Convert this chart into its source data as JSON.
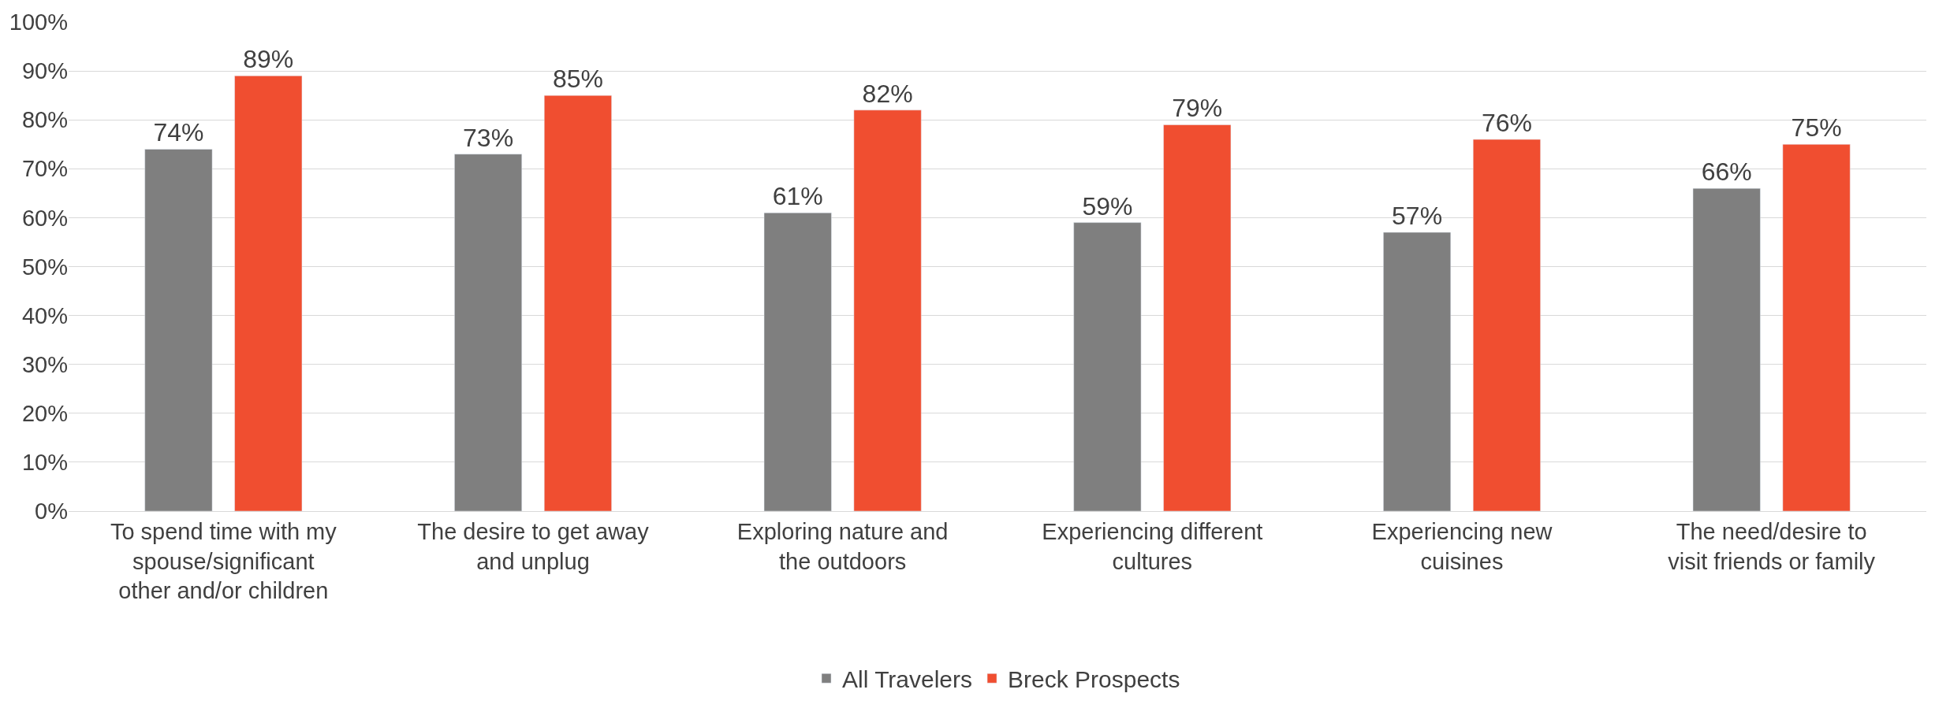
{
  "chart_data": {
    "type": "bar",
    "categories": [
      "To spend time with my spouse/significant other and/or children",
      "The desire to get away and unplug",
      "Exploring nature and the outdoors",
      "Experiencing different cultures",
      "Experiencing new cuisines",
      "The need/desire to visit friends or family"
    ],
    "series": [
      {
        "name": "All Travelers",
        "color": "#7f7f7f",
        "values": [
          74,
          73,
          61,
          59,
          57,
          66
        ],
        "value_labels": [
          "74%",
          "73%",
          "61%",
          "59%",
          "57%",
          "66%"
        ]
      },
      {
        "name": "Breck Prospects",
        "color": "#f04e30",
        "values": [
          89,
          85,
          82,
          79,
          76,
          75
        ],
        "value_labels": [
          "89%",
          "85%",
          "82%",
          "79%",
          "76%",
          "75%"
        ]
      }
    ],
    "ylim": [
      0,
      100
    ],
    "yticks": [
      {
        "value": 0,
        "label": "0%"
      },
      {
        "value": 10,
        "label": "10%"
      },
      {
        "value": 20,
        "label": "20%"
      },
      {
        "value": 30,
        "label": "30%"
      },
      {
        "value": 40,
        "label": "40%"
      },
      {
        "value": 50,
        "label": "50%"
      },
      {
        "value": 60,
        "label": "60%"
      },
      {
        "value": 70,
        "label": "70%"
      },
      {
        "value": 80,
        "label": "80%"
      },
      {
        "value": 90,
        "label": "90%"
      },
      {
        "value": 100,
        "label": "100%"
      }
    ],
    "grid": "y",
    "legend": "bottom"
  }
}
